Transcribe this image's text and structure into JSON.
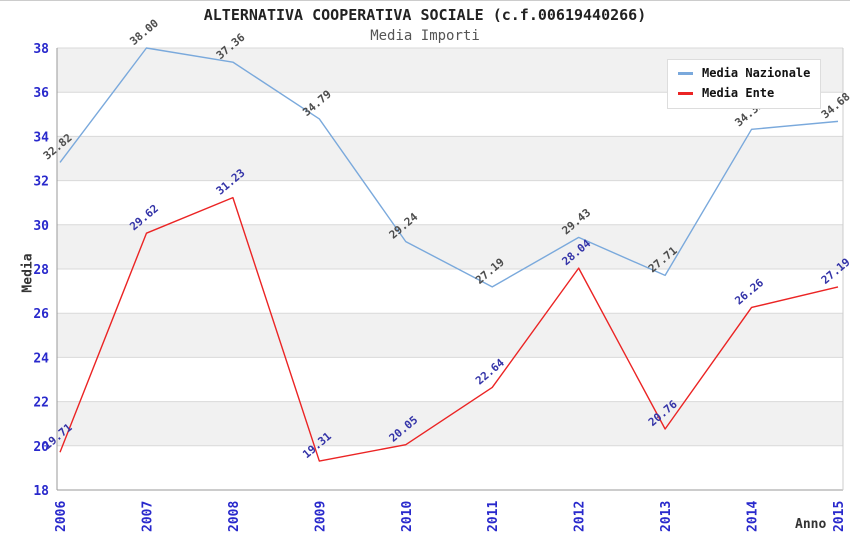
{
  "header": {
    "title": "ALTERNATIVA COOPERATIVA SOCIALE (c.f.00619440266)",
    "subtitle": "Media Importi"
  },
  "chart_data": {
    "type": "line",
    "x": [
      "2006",
      "2007",
      "2008",
      "2009",
      "2010",
      "2011",
      "2012",
      "2013",
      "2014",
      "2015"
    ],
    "series": [
      {
        "name": "Media Nazionale",
        "color": "#7aa9dc",
        "label_color": "#4d4d4d",
        "values": [
          32.82,
          38.0,
          37.36,
          34.79,
          29.24,
          27.19,
          29.43,
          27.71,
          34.32,
          34.68
        ]
      },
      {
        "name": "Media Ente",
        "color": "#eb2424",
        "label_color": "#3434a8",
        "values": [
          19.71,
          29.62,
          31.23,
          19.31,
          20.05,
          22.64,
          28.04,
          20.76,
          26.26,
          27.19
        ]
      }
    ],
    "xlabel": "Anno",
    "ylabel": "Media",
    "ylim": [
      18,
      38
    ],
    "y_ticks": [
      "18",
      "20",
      "22",
      "24",
      "26",
      "28",
      "30",
      "32",
      "34",
      "36",
      "38"
    ],
    "grid": "alternating-horizontal-bands",
    "legend_position": "top-right",
    "styles": {
      "band_color": "#f1f1f1",
      "gridline_color": "#d9d9d9",
      "axis_color": "#9a9a9a",
      "plot_border_color": "#cccccc",
      "tick_label_color": "#2929cc",
      "axis_title_color": "#333333"
    }
  }
}
